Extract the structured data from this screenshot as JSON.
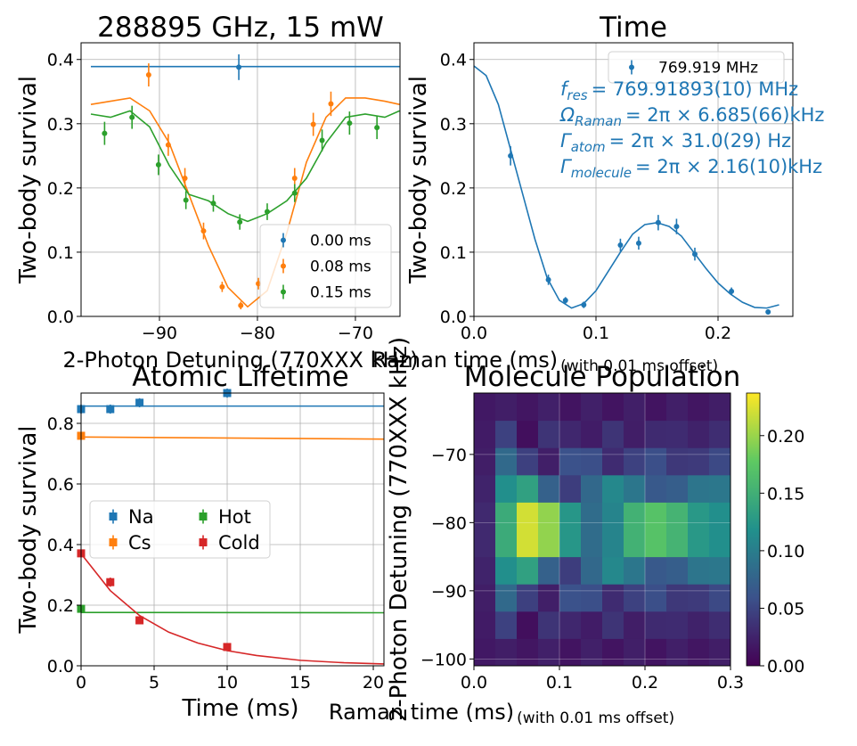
{
  "chart_data": [
    {
      "type": "scatter",
      "title": "288895 GHz, 15 mW",
      "xlabel": "2-Photon Detuning (770XXX kHz)",
      "ylabel": "Two-body survival",
      "xlim": [
        -98,
        -65.45
      ],
      "ylim": [
        0,
        0.426
      ],
      "xticks": [
        {
          "value": -90,
          "label": "−90"
        },
        {
          "value": -80,
          "label": "−80"
        },
        {
          "value": -70,
          "label": "−70"
        }
      ],
      "yticks": [
        {
          "value": 0,
          "label": "0.0"
        },
        0.1,
        0.2,
        0.3,
        0.4
      ],
      "grid": true,
      "legend": "lower right",
      "marker": "circle",
      "series": [
        {
          "name": "0.00 ms",
          "color": "#1f77b4",
          "x": [
            -81.9
          ],
          "values": [
            0.388
          ],
          "errors": [
            0.02
          ],
          "fit_x": [
            -97,
            -65.5
          ],
          "fit_values": [
            0.389,
            0.389
          ]
        },
        {
          "name": "0.08 ms",
          "color": "#ff7f0e",
          "x": [
            -91.1,
            -89.1,
            -87.4,
            -85.5,
            -83.6,
            -81.7,
            -79.9,
            -76.2,
            -74.3,
            -72.5
          ],
          "values": [
            0.376,
            0.267,
            0.215,
            0.133,
            0.046,
            0.017,
            0.051,
            0.215,
            0.299,
            0.331
          ],
          "errors": [
            0.018,
            0.017,
            0.016,
            0.013,
            0.008,
            0.006,
            0.009,
            0.016,
            0.018,
            0.019
          ],
          "fit_x": [
            -97,
            -95,
            -93,
            -91,
            -89,
            -87,
            -85,
            -83,
            -81,
            -79,
            -77,
            -75,
            -73,
            -71,
            -69,
            -67,
            -65.5
          ],
          "fit_values": [
            0.33,
            0.335,
            0.34,
            0.32,
            0.27,
            0.19,
            0.11,
            0.045,
            0.015,
            0.04,
            0.13,
            0.24,
            0.31,
            0.34,
            0.34,
            0.335,
            0.33
          ]
        },
        {
          "name": "0.15 ms",
          "color": "#2ca02c",
          "x": [
            -95.6,
            -92.8,
            -90.1,
            -87.3,
            -84.5,
            -81.8,
            -79.0,
            -76.2,
            -73.4,
            -70.6,
            -67.8
          ],
          "values": [
            0.285,
            0.31,
            0.236,
            0.181,
            0.176,
            0.147,
            0.163,
            0.192,
            0.274,
            0.301,
            0.294
          ],
          "errors": [
            0.018,
            0.018,
            0.016,
            0.014,
            0.013,
            0.012,
            0.013,
            0.014,
            0.017,
            0.018,
            0.018
          ],
          "fit_x": [
            -97,
            -95,
            -93,
            -91,
            -89,
            -87,
            -85,
            -83,
            -81,
            -79,
            -77,
            -75,
            -73,
            -71,
            -69,
            -67,
            -65.5
          ],
          "fit_values": [
            0.315,
            0.31,
            0.32,
            0.295,
            0.235,
            0.19,
            0.18,
            0.16,
            0.148,
            0.16,
            0.18,
            0.215,
            0.27,
            0.31,
            0.315,
            0.31,
            0.32
          ]
        }
      ]
    },
    {
      "type": "scatter",
      "title": "Time",
      "xlabel": "Raman time (ms)",
      "xlabel_note": "(with 0.01 ms offset)",
      "ylabel": "Two-body survival",
      "xlim": [
        0,
        0.2613
      ],
      "ylim": [
        0,
        0.426
      ],
      "xticks": [
        {
          "value": 0,
          "label": "0.0"
        },
        0.1,
        0.2
      ],
      "yticks": [
        {
          "value": 0,
          "label": "0.0"
        },
        0.1,
        0.2,
        0.3,
        0.4
      ],
      "grid": true,
      "legend": "upper right",
      "marker": "circle",
      "series": [
        {
          "name": "769.919 MHz",
          "color": "#1f77b4",
          "x": [
            0.03,
            0.061,
            0.075,
            0.09,
            0.12,
            0.135,
            0.151,
            0.166,
            0.181,
            0.211,
            0.241
          ],
          "values": [
            0.25,
            0.057,
            0.025,
            0.018,
            0.111,
            0.114,
            0.146,
            0.14,
            0.097,
            0.039,
            0.007
          ],
          "errors": [
            0.015,
            0.008,
            0.005,
            0.005,
            0.01,
            0.01,
            0.012,
            0.012,
            0.01,
            0.006,
            0.004
          ],
          "fit_x": [
            0,
            0.01,
            0.02,
            0.03,
            0.04,
            0.05,
            0.06,
            0.07,
            0.08,
            0.09,
            0.1,
            0.11,
            0.12,
            0.13,
            0.14,
            0.15,
            0.16,
            0.17,
            0.18,
            0.19,
            0.2,
            0.21,
            0.22,
            0.23,
            0.24,
            0.25
          ],
          "fit_values": [
            0.39,
            0.375,
            0.33,
            0.26,
            0.19,
            0.12,
            0.06,
            0.025,
            0.013,
            0.02,
            0.04,
            0.07,
            0.1,
            0.128,
            0.143,
            0.146,
            0.14,
            0.125,
            0.1,
            0.075,
            0.052,
            0.035,
            0.022,
            0.014,
            0.013,
            0.018
          ]
        }
      ],
      "annotations": [
        {
          "symbol": "f",
          "sub": "res",
          "text": "= 769.91893(10) MHz"
        },
        {
          "symbol": "Ω",
          "sub": "Raman",
          "text": "= 2π × 6.685(66)kHz"
        },
        {
          "symbol": "Γ",
          "sub": "atom",
          "text": "= 2π × 31.0(29) Hz"
        },
        {
          "symbol": "Γ",
          "sub": "molecule",
          "text": "= 2π × 2.16(10)kHz"
        }
      ]
    },
    {
      "type": "scatter",
      "title": "Atomic Lifetime",
      "xlabel": "Time (ms)",
      "ylabel": "Two-body survival",
      "xlim": [
        0,
        20.73
      ],
      "ylim": [
        0,
        0.9
      ],
      "xticks": [
        0,
        5,
        10,
        15,
        20
      ],
      "yticks": [
        {
          "value": 0,
          "label": "0.0"
        },
        0.2,
        0.4,
        0.6,
        0.8
      ],
      "grid": true,
      "legend": "center left",
      "legend_columns": 2,
      "marker": "square",
      "series": [
        {
          "name": "Na",
          "color": "#1f77b4",
          "x": [
            0,
            2,
            4,
            10
          ],
          "values": [
            0.847,
            0.847,
            0.868,
            0.9
          ],
          "errors": [
            0.015,
            0.015,
            0.015,
            0.015
          ],
          "fit_x": [
            0,
            20.73
          ],
          "fit_values": [
            0.857,
            0.857
          ]
        },
        {
          "name": "Cs",
          "color": "#ff7f0e",
          "x": [
            0
          ],
          "values": [
            0.759
          ],
          "errors": [
            0.01
          ],
          "fit_x": [
            0,
            20.73
          ],
          "fit_values": [
            0.755,
            0.748
          ]
        },
        {
          "name": "Hot",
          "color": "#2ca02c",
          "x": [
            0
          ],
          "values": [
            0.188
          ],
          "errors": [
            0.012
          ],
          "fit_x": [
            0,
            20.73
          ],
          "fit_values": [
            0.176,
            0.175
          ]
        },
        {
          "name": "Cold",
          "color": "#d62728",
          "x": [
            0,
            2,
            4,
            10
          ],
          "values": [
            0.371,
            0.276,
            0.15,
            0.062
          ],
          "errors": [
            0.012,
            0.015,
            0.012,
            0.01
          ],
          "fit_x": [
            0,
            2,
            4,
            6,
            8,
            10,
            12,
            15,
            18,
            20.73
          ],
          "fit_values": [
            0.37,
            0.248,
            0.166,
            0.111,
            0.075,
            0.05,
            0.034,
            0.018,
            0.01,
            0.006
          ]
        }
      ]
    },
    {
      "type": "heatmap",
      "title": "Molecule Population",
      "xlabel": "Raman time (ms)",
      "xlabel_note": "(with 0.01 ms offset)",
      "ylabel": "2-Photon Detuning (770XXX kHz)",
      "xlim": [
        0,
        0.3
      ],
      "ylim": [
        -101,
        -61
      ],
      "xticks": [
        {
          "value": 0,
          "label": "0.0"
        },
        0.1,
        0.2,
        0.3
      ],
      "yticks": [
        {
          "value": -100,
          "label": "−100"
        },
        {
          "value": -90,
          "label": "−90"
        },
        {
          "value": -80,
          "label": "−80"
        },
        {
          "value": -70,
          "label": "−70"
        }
      ],
      "grid": true,
      "colormap": "viridis",
      "clim": [
        0,
        0.237
      ],
      "cticks": [
        {
          "value": 0,
          "label": "0.00"
        },
        {
          "value": 0.05,
          "label": "0.05"
        },
        {
          "value": 0.1,
          "label": "0.10"
        },
        {
          "value": 0.15,
          "label": "0.15"
        },
        {
          "value": 0.2,
          "label": "0.20"
        }
      ],
      "x_edges": [
        0,
        0.025,
        0.05,
        0.075,
        0.1,
        0.125,
        0.15,
        0.175,
        0.2,
        0.225,
        0.25,
        0.275,
        0.3
      ],
      "y_edges": [
        -101,
        -97,
        -93,
        -89,
        -85,
        -81,
        -77,
        -73,
        -69,
        -65,
        -61
      ],
      "z": [
        [
          0.017,
          0.021,
          0.015,
          0.023,
          0.014,
          0.023,
          0.014,
          0.022,
          0.014,
          0.022,
          0.015,
          0.021
        ],
        [
          0.019,
          0.047,
          0.01,
          0.037,
          0.028,
          0.02,
          0.037,
          0.021,
          0.03,
          0.031,
          0.024,
          0.032
        ],
        [
          0.021,
          0.081,
          0.046,
          0.022,
          0.059,
          0.057,
          0.031,
          0.047,
          0.057,
          0.04,
          0.042,
          0.053
        ],
        [
          0.025,
          0.117,
          0.134,
          0.073,
          0.044,
          0.08,
          0.11,
          0.093,
          0.066,
          0.071,
          0.092,
          0.094
        ],
        [
          0.029,
          0.145,
          0.221,
          0.197,
          0.124,
          0.084,
          0.106,
          0.152,
          0.17,
          0.154,
          0.126,
          0.117
        ],
        [
          0.029,
          0.145,
          0.221,
          0.197,
          0.124,
          0.084,
          0.106,
          0.152,
          0.17,
          0.154,
          0.126,
          0.117
        ],
        [
          0.025,
          0.117,
          0.134,
          0.073,
          0.044,
          0.08,
          0.11,
          0.093,
          0.066,
          0.071,
          0.092,
          0.094
        ],
        [
          0.021,
          0.081,
          0.046,
          0.022,
          0.059,
          0.057,
          0.031,
          0.047,
          0.057,
          0.04,
          0.042,
          0.053
        ],
        [
          0.019,
          0.047,
          0.01,
          0.037,
          0.028,
          0.02,
          0.037,
          0.021,
          0.03,
          0.031,
          0.024,
          0.032
        ],
        [
          0.017,
          0.021,
          0.015,
          0.023,
          0.014,
          0.023,
          0.014,
          0.022,
          0.014,
          0.022,
          0.015,
          0.021
        ]
      ]
    }
  ]
}
